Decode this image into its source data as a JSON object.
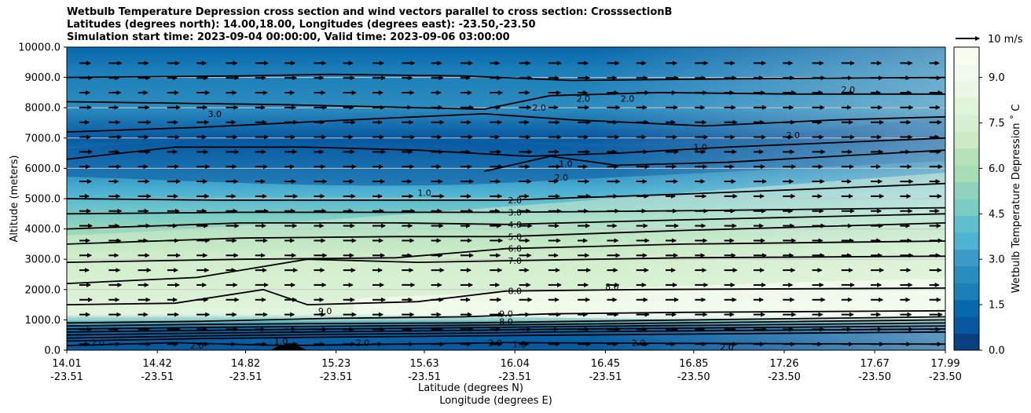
{
  "title_lines": [
    "Wetbulb Temperature Depression cross section and wind vectors parallel to cross section: CrosssectionB",
    "Latitudes (degrees north): 14.00,18.00, Longitudes (degrees east): -23.50,-23.50",
    "Simulation start time: 2023-09-04 00:00:00, Valid time: 2023-09-06 03:00:00"
  ],
  "chart_data": {
    "type": "contour",
    "ylabel": "Altitude (meters)",
    "xlabel_lines": [
      "Latitude (degrees N)",
      "Longitude (degrees E)"
    ],
    "ylim": [
      0,
      10000
    ],
    "y_ticks": [
      "0.0",
      "1000.0",
      "2000.0",
      "3000.0",
      "4000.0",
      "5000.0",
      "6000.0",
      "7000.0",
      "8000.0",
      "9000.0",
      "10000.0"
    ],
    "x_ticks": [
      {
        "lat": "14.01",
        "lon": "-23.51"
      },
      {
        "lat": "14.42",
        "lon": "-23.51"
      },
      {
        "lat": "14.82",
        "lon": "-23.51"
      },
      {
        "lat": "15.23",
        "lon": "-23.51"
      },
      {
        "lat": "15.63",
        "lon": "-23.51"
      },
      {
        "lat": "16.04",
        "lon": "-23.51"
      },
      {
        "lat": "16.45",
        "lon": "-23.51"
      },
      {
        "lat": "16.85",
        "lon": "-23.50"
      },
      {
        "lat": "17.26",
        "lon": "-23.50"
      },
      {
        "lat": "17.67",
        "lon": "-23.50"
      },
      {
        "lat": "17.99",
        "lon": "-23.50"
      }
    ],
    "colorbar": {
      "label": "Wetbulb Temperature Depression ˚ C",
      "range": [
        0,
        10
      ],
      "ticks": [
        "0.0",
        "1.5",
        "3.0",
        "4.5",
        "6.0",
        "7.5",
        "9.0"
      ],
      "colors": [
        "#084081",
        "#0858a0",
        "#0868ac",
        "#1d7eb8",
        "#2b8cbe",
        "#3b9ac8",
        "#4eb3d3",
        "#5fbfcf",
        "#7bccc4",
        "#8fd3bf",
        "#a8ddb5",
        "#b6e2bb",
        "#ccebc5",
        "#d6efd0",
        "#e0f3db",
        "#eaf7e4",
        "#f1faec",
        "#f7fcf0"
      ]
    },
    "quiver_key": {
      "label": "10 m/s",
      "speed": 10
    },
    "wind_direction": "parallel, toward increasing latitude",
    "grid": true,
    "contour_labels": [
      {
        "text": "2.0",
        "x": 16.04,
        "y": 4950
      },
      {
        "text": "3.0",
        "x": 16.04,
        "y": 4550
      },
      {
        "text": "4.0",
        "x": 16.04,
        "y": 4150
      },
      {
        "text": "5.0",
        "x": 16.04,
        "y": 3750
      },
      {
        "text": "6.0",
        "x": 16.04,
        "y": 3350
      },
      {
        "text": "7.0",
        "x": 16.04,
        "y": 2950
      },
      {
        "text": "8.0",
        "x": 16.04,
        "y": 1950
      },
      {
        "text": "9.0",
        "x": 16.0,
        "y": 1200
      },
      {
        "text": "8.0",
        "x": 16.0,
        "y": 950
      },
      {
        "text": "2.0",
        "x": 15.95,
        "y": 250
      },
      {
        "text": "1.0",
        "x": 16.06,
        "y": 200
      },
      {
        "text": "2.0",
        "x": 16.6,
        "y": 250
      },
      {
        "text": "2.0",
        "x": 15.35,
        "y": 250
      },
      {
        "text": "2.0",
        "x": 14.15,
        "y": 250
      },
      {
        "text": "2.0",
        "x": 14.6,
        "y": 150
      },
      {
        "text": "1.0",
        "x": 14.98,
        "y": 300
      },
      {
        "text": "2.0",
        "x": 17.0,
        "y": 100
      },
      {
        "text": "1.0",
        "x": 16.27,
        "y": 6150
      },
      {
        "text": "2.0",
        "x": 16.25,
        "y": 5700
      },
      {
        "text": "2.0",
        "x": 16.15,
        "y": 8000
      },
      {
        "text": "2.0",
        "x": 16.35,
        "y": 8300
      },
      {
        "text": "2.0",
        "x": 16.55,
        "y": 8300
      },
      {
        "text": "2.0",
        "x": 17.55,
        "y": 8600
      },
      {
        "text": "3.0",
        "x": 14.68,
        "y": 7800
      },
      {
        "text": "1.0",
        "x": 16.88,
        "y": 6700
      },
      {
        "text": "2.0",
        "x": 17.3,
        "y": 7100
      },
      {
        "text": "1.0",
        "x": 15.63,
        "y": 5200
      },
      {
        "text": "9.0",
        "x": 15.18,
        "y": 1300
      },
      {
        "text": "8.0",
        "x": 16.48,
        "y": 2100
      }
    ]
  }
}
